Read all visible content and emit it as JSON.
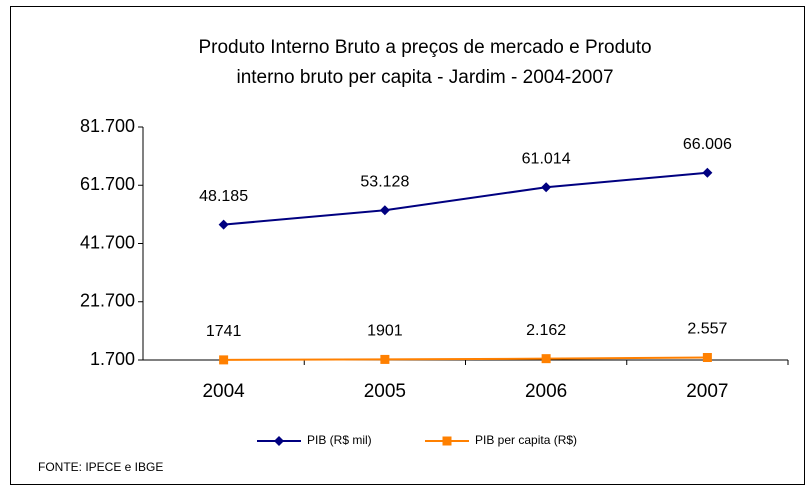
{
  "chart_data": {
    "type": "line",
    "title": [
      "Produto Interno Bruto a preços de mercado e  Produto",
      "interno bruto per capita - Jardim - 2004-2007"
    ],
    "categories": [
      "2004",
      "2005",
      "2006",
      "2007"
    ],
    "series": [
      {
        "name": "PIB (R$ mil)",
        "color": "#000080",
        "marker": "diamond",
        "values": [
          48185,
          53128,
          61014,
          66006
        ],
        "value_labels": [
          "48.185",
          "53.128",
          "61.014",
          "66.006"
        ]
      },
      {
        "name": "PIB per capita (R$)",
        "color": "#ff8000",
        "marker": "square",
        "values": [
          1741,
          1901,
          2162,
          2557
        ],
        "value_labels": [
          "1741",
          "1901",
          "2.162",
          "2.557"
        ]
      }
    ],
    "ylim": [
      1700,
      81700
    ],
    "yticks": [
      {
        "value": 1700,
        "label": "1.700"
      },
      {
        "value": 21700,
        "label": "21.700"
      },
      {
        "value": 41700,
        "label": "41.700"
      },
      {
        "value": 61700,
        "label": "61.700"
      },
      {
        "value": 81700,
        "label": "81.700"
      }
    ],
    "grid": false,
    "legend": "bottom",
    "source": "FONTE: IPECE e IBGE"
  }
}
